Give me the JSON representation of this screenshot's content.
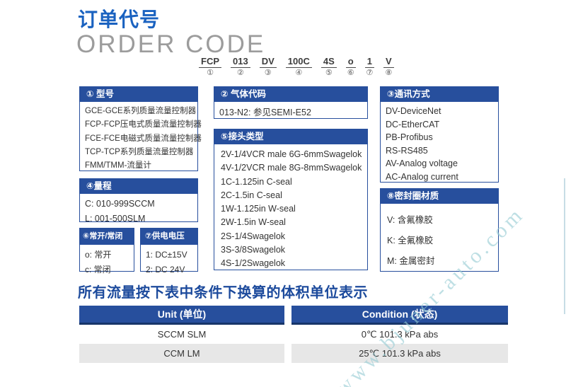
{
  "header": {
    "title_cn": "订单代号",
    "title_en": "ORDER CODE"
  },
  "order_code": {
    "segments": [
      {
        "code": "FCP",
        "num": "①"
      },
      {
        "code": "013",
        "num": "②"
      },
      {
        "code": "DV",
        "num": "③"
      },
      {
        "code": "100C",
        "num": "④"
      },
      {
        "code": "4S",
        "num": "⑤"
      },
      {
        "code": "o",
        "num": "⑥"
      },
      {
        "code": "1",
        "num": "⑦"
      },
      {
        "code": "V",
        "num": "⑧"
      }
    ]
  },
  "boxes": {
    "model": {
      "title": "① 型号",
      "items": [
        "GCE-GCE系列质量流量控制器",
        "FCP-FCP压电式质量流量控制器",
        "FCE-FCE电磁式质量流量控制器",
        "TCP-TCP系列质量流量控制器",
        "FMM/TMM-流量计"
      ]
    },
    "gas": {
      "title": "② 气体代码",
      "items": [
        "013-N2: 参见SEMI-E52"
      ]
    },
    "comm": {
      "title": "③通讯方式",
      "items": [
        "DV-DeviceNet",
        "DC-EtherCAT",
        "PB-Profibus",
        "RS-RS485",
        "AV-Analog voltage",
        "AC-Analog current"
      ]
    },
    "range": {
      "title": "④量程",
      "items": [
        "C: 010-999SCCM",
        "L: 001-500SLM"
      ]
    },
    "connector": {
      "title": "⑤接头类型",
      "items": [
        "2V-1/4VCR male 6G-6mmSwagelok",
        "4V-1/2VCR male 8G-8mmSwagelok",
        "1C-1.125in C-seal",
        "2C-1.5in C-seal",
        "1W-1.125in W-seal",
        "2W-1.5in W-seal",
        "2S-1/4Swagelok",
        "3S-3/8Swagelok",
        "4S-1/2Swagelok"
      ]
    },
    "open_close": {
      "title": "⑥常开/常闭",
      "items": [
        "o: 常开",
        "c: 常闭"
      ]
    },
    "voltage": {
      "title": "⑦供电电压",
      "items": [
        "1: DC±15V",
        "2: DC 24V"
      ]
    },
    "seal": {
      "title": "⑧密封圈材质",
      "items": [
        "V: 含氟橡胶",
        "K: 全氟橡胶",
        "M: 金属密封"
      ]
    }
  },
  "flow_note": "所有流量按下表中条件下换算的体积单位表示",
  "unit_table": {
    "columns": [
      {
        "header": "Unit (单位)",
        "cells": [
          "SCCM  SLM",
          "CCM  LM"
        ]
      },
      {
        "header": "Condition (状态)",
        "cells": [
          "0℃ 101.3 kPa abs",
          "25℃ 101.3 kPa abs"
        ]
      }
    ]
  },
  "watermark": "www.bjuner-auto.com",
  "colors": {
    "box_blue": "#274f9d",
    "title_blue": "#1a62c0",
    "note_blue": "#1c4a9c",
    "table_header_border": "#173569",
    "row_stripe": "#e7e7e7",
    "watermark_cyan": "#96cbd4"
  }
}
